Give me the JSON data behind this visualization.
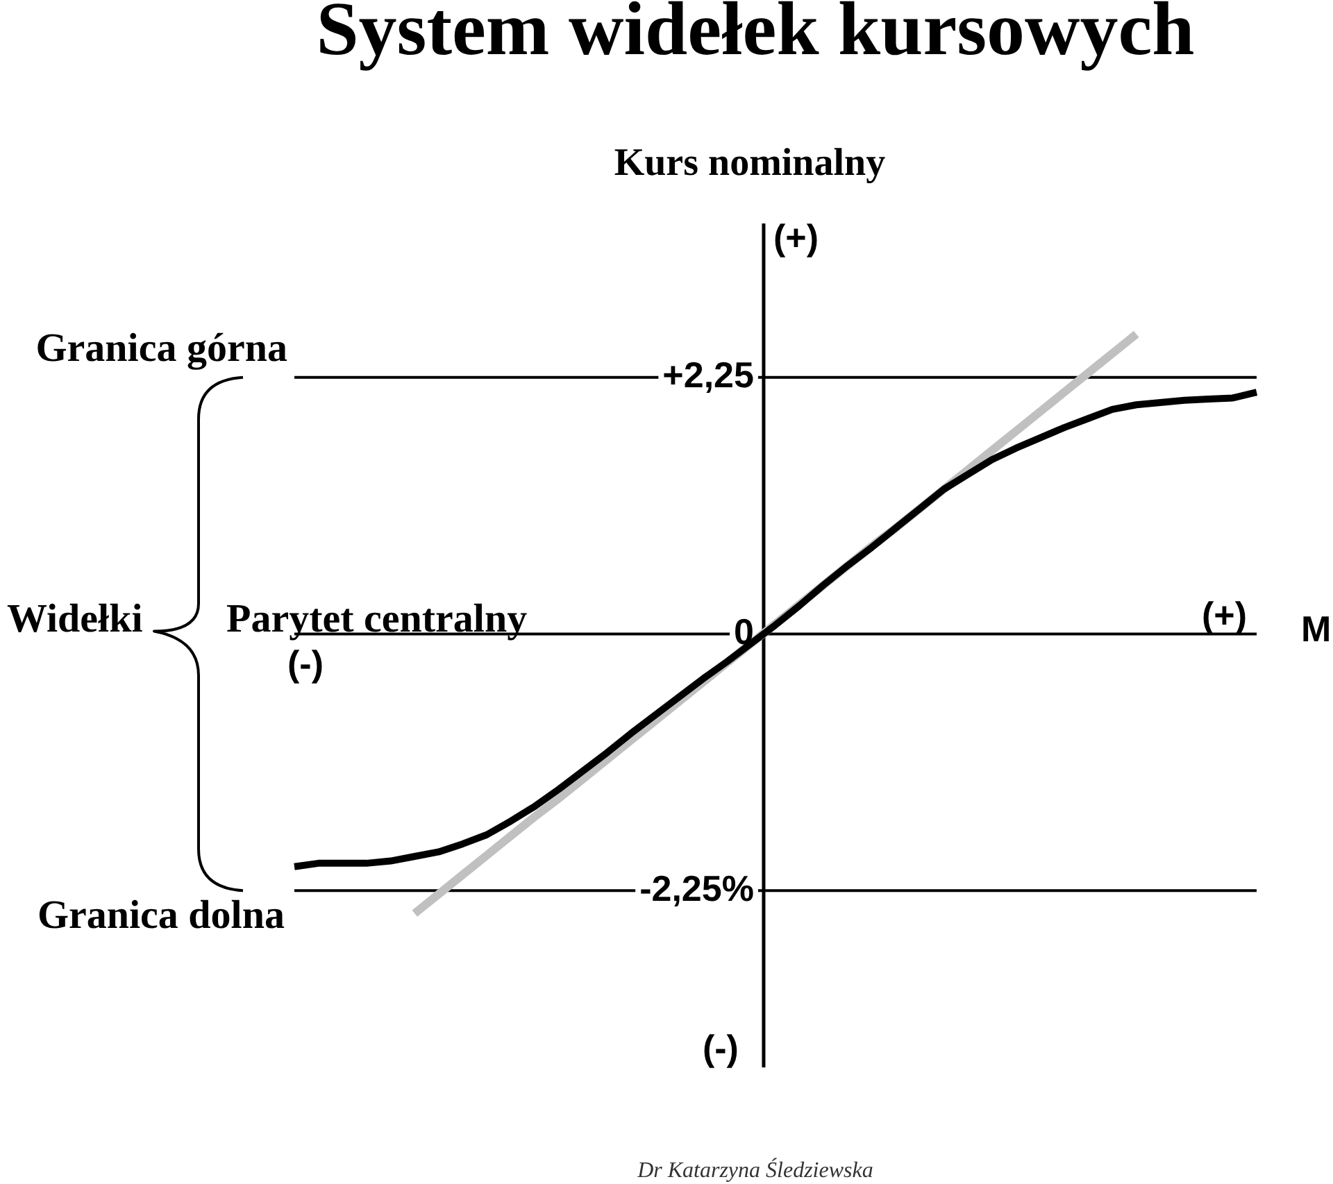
{
  "chart_data": {
    "type": "line",
    "title": "System widełek kursowych",
    "xlabel": "M",
    "ylabel": "Kurs nominalny",
    "categories": [
      null,
      null,
      null,
      null,
      null,
      null,
      null,
      null,
      null,
      null,
      null,
      null,
      null,
      null,
      null,
      null,
      null,
      null,
      null,
      null,
      null,
      null,
      null,
      null,
      null,
      null,
      null,
      null,
      null,
      null,
      null,
      null,
      null,
      null,
      null,
      null,
      null,
      null,
      null,
      null,
      null
    ],
    "series": [
      {
        "color": "#000000",
        "values": [
          -2.04,
          -2.01,
          -2.01,
          -2.01,
          -1.99,
          -1.95,
          -1.91,
          -1.84,
          -1.76,
          -1.64,
          -1.51,
          -1.36,
          -1.2,
          -1.04,
          -0.87,
          -0.71,
          -0.55,
          -0.39,
          -0.24,
          -0.08,
          0.08,
          0.25,
          0.43,
          0.6,
          0.76,
          0.93,
          1.1,
          1.27,
          1.4,
          1.53,
          1.63,
          1.72,
          1.81,
          1.89,
          1.97,
          2.01,
          2.03,
          2.05,
          2.06,
          2.07,
          2.12
        ]
      },
      {
        "color": "#c0c0c0",
        "values": [
          null,
          null,
          null,
          null,
          null,
          -2.45,
          -2.28,
          -2.11,
          -1.94,
          -1.77,
          -1.6,
          -1.44,
          -1.27,
          -1.1,
          -0.93,
          -0.76,
          -0.59,
          -0.42,
          -0.25,
          -0.08,
          0.09,
          0.26,
          0.43,
          0.6,
          0.77,
          0.93,
          1.1,
          1.27,
          1.44,
          1.61,
          1.78,
          1.95,
          2.12,
          2.29,
          2.46,
          2.63,
          null,
          null,
          null,
          null,
          null
        ]
      }
    ],
    "ylim": [
      -3.8,
      3.6
    ],
    "yticks": [
      {
        "value": -2.25,
        "label": "-2,25%"
      },
      0,
      {
        "value": 2.25,
        "label": "+2,25"
      }
    ],
    "ref_lines": [
      {
        "axis": "y",
        "value": 2.25,
        "label": "Granica górna",
        "color": "#000000"
      },
      {
        "axis": "y",
        "value": 0,
        "label": "Parytet centralny",
        "color": "#000000"
      },
      {
        "axis": "y",
        "value": -2.25,
        "label": "Granica dolna",
        "color": "#000000"
      }
    ],
    "annotations": [
      "(+)",
      "Widełki",
      "(-)",
      "(+)",
      "(-)",
      "Dr Katarzyna Śledziewska"
    ],
    "tick_labels": "y",
    "legend": false,
    "marker": "none",
    "line_style": "solid"
  }
}
